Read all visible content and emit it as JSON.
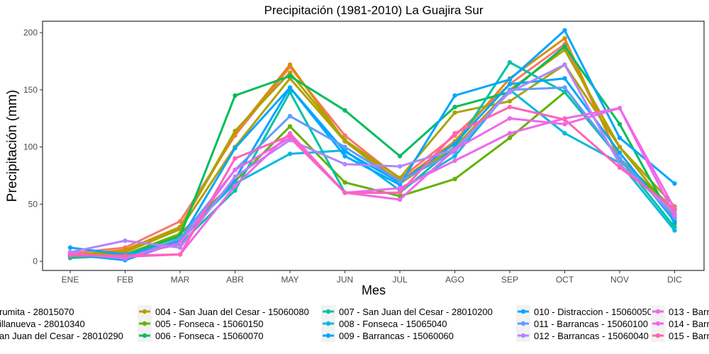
{
  "chart_data": {
    "type": "line",
    "title": "Precipitación (1981-2010)  La Guajira Sur",
    "xlabel": "Mes",
    "ylabel": "Precipitación (mm)",
    "ylim": [
      -8,
      210
    ],
    "yticks": [
      0,
      50,
      100,
      150,
      200
    ],
    "grid": false,
    "legend_position": "bottom",
    "categories": [
      "ENE",
      "FEB",
      "MAR",
      "ABR",
      "MAY",
      "JUN",
      "JUL",
      "AGO",
      "SEP",
      "OCT",
      "NOV",
      "DIC"
    ],
    "series": [
      {
        "name": "rumita - 28015070",
        "color": "#F8766D",
        "values": [
          7,
          12,
          35,
          110,
          170,
          110,
          72,
          110,
          155,
          190,
          90,
          40
        ]
      },
      {
        "name": "illanueva - 28010340",
        "color": "#DB8E00",
        "values": [
          5,
          10,
          30,
          112,
          172,
          105,
          70,
          105,
          160,
          195,
          88,
          45
        ]
      },
      {
        "name": "an Juan del Cesar - 28010290",
        "color": "#AEA200",
        "values": [
          4,
          8,
          28,
          100,
          160,
          105,
          68,
          100,
          150,
          185,
          100,
          48
        ]
      },
      {
        "name": "004 - San Juan del Cesar - 15060080",
        "color": "#AEA200",
        "values": [
          6,
          8,
          30,
          114,
          165,
          106,
          73,
          130,
          140,
          172,
          100,
          40
        ]
      },
      {
        "name": "005 - Fonseca - 15060150",
        "color": "#64B200",
        "values": [
          4,
          6,
          24,
          70,
          118,
          69,
          57,
          72,
          108,
          148,
          90,
          45
        ]
      },
      {
        "name": "006 - Fonseca - 15060070",
        "color": "#00BD5C",
        "values": [
          3,
          5,
          22,
          145,
          162,
          132,
          92,
          135,
          148,
          188,
          120,
          33
        ]
      },
      {
        "name": "007 - San Juan del Cesar - 28010200",
        "color": "#00C1A7",
        "values": [
          4,
          5,
          15,
          62,
          148,
          60,
          60,
          100,
          174,
          148,
          90,
          30
        ]
      },
      {
        "name": "008 - Fonseca - 15065040",
        "color": "#00BADE",
        "values": [
          5,
          2,
          20,
          68,
          94,
          97,
          62,
          92,
          150,
          112,
          86,
          27
        ]
      },
      {
        "name": "009 - Barrancas - 15060060",
        "color": "#00A6FF",
        "values": [
          12,
          6,
          18,
          99,
          152,
          92,
          67,
          145,
          159,
          202,
          108,
          68
        ]
      },
      {
        "name": "010 - Distraccion - 15060050",
        "color": "#00A6FF",
        "values": [
          6,
          1,
          17,
          72,
          152,
          96,
          69,
          103,
          155,
          160,
          95,
          35
        ]
      },
      {
        "name": "011 - Barrancas - 15060100",
        "color": "#619CFF",
        "values": [
          7,
          2,
          20,
          80,
          127,
          100,
          70,
          96,
          150,
          152,
          90,
          38
        ]
      },
      {
        "name": "012 - Barrancas - 15060040",
        "color": "#B385FF",
        "values": [
          8,
          18,
          12,
          74,
          106,
          85,
          83,
          98,
          148,
          172,
          85,
          42
        ]
      },
      {
        "name": "013 - Barr",
        "color": "#EF67EB",
        "values": [
          7,
          3,
          16,
          80,
          108,
          60,
          64,
          88,
          112,
          125,
          134,
          40
        ]
      },
      {
        "name": "014 - Barr",
        "color": "#EF67EB",
        "values": [
          6,
          4,
          6,
          66,
          112,
          60,
          54,
          98,
          125,
          120,
          134,
          46
        ]
      },
      {
        "name": "015 - Barr",
        "color": "#FF63B6",
        "values": [
          5,
          5,
          6,
          90,
          110,
          60,
          60,
          112,
          135,
          124,
          82,
          46
        ]
      }
    ]
  }
}
